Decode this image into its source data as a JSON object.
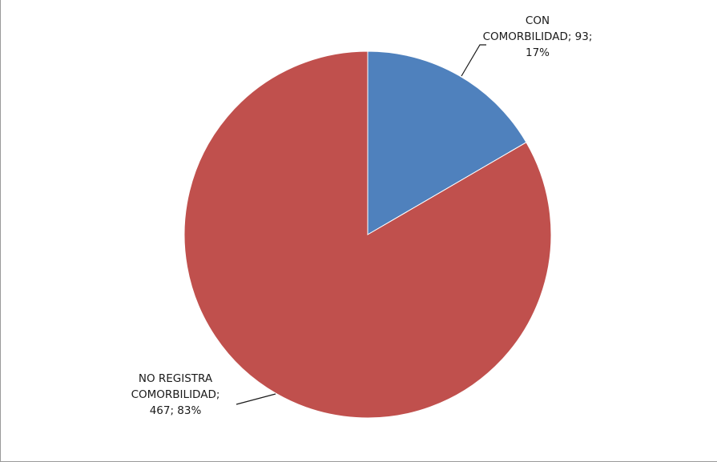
{
  "chart_data": {
    "type": "pie",
    "title": "",
    "slices": [
      {
        "label": "CON COMORBILIDAD",
        "value": 93,
        "percent": 17,
        "color": "#4f81bd",
        "label_lines": [
          "CON",
          "COMORBILIDAD; 93;",
          "17%"
        ]
      },
      {
        "label": "NO REGISTRA COMORBILIDAD",
        "value": 467,
        "percent": 83,
        "color": "#c0504d",
        "label_lines": [
          "NO REGISTRA",
          "COMORBILIDAD;",
          "467; 83%"
        ]
      }
    ],
    "start_angle_deg": 0,
    "direction": "clockwise",
    "legend": "none",
    "data_labels": "outside with leader lines"
  }
}
